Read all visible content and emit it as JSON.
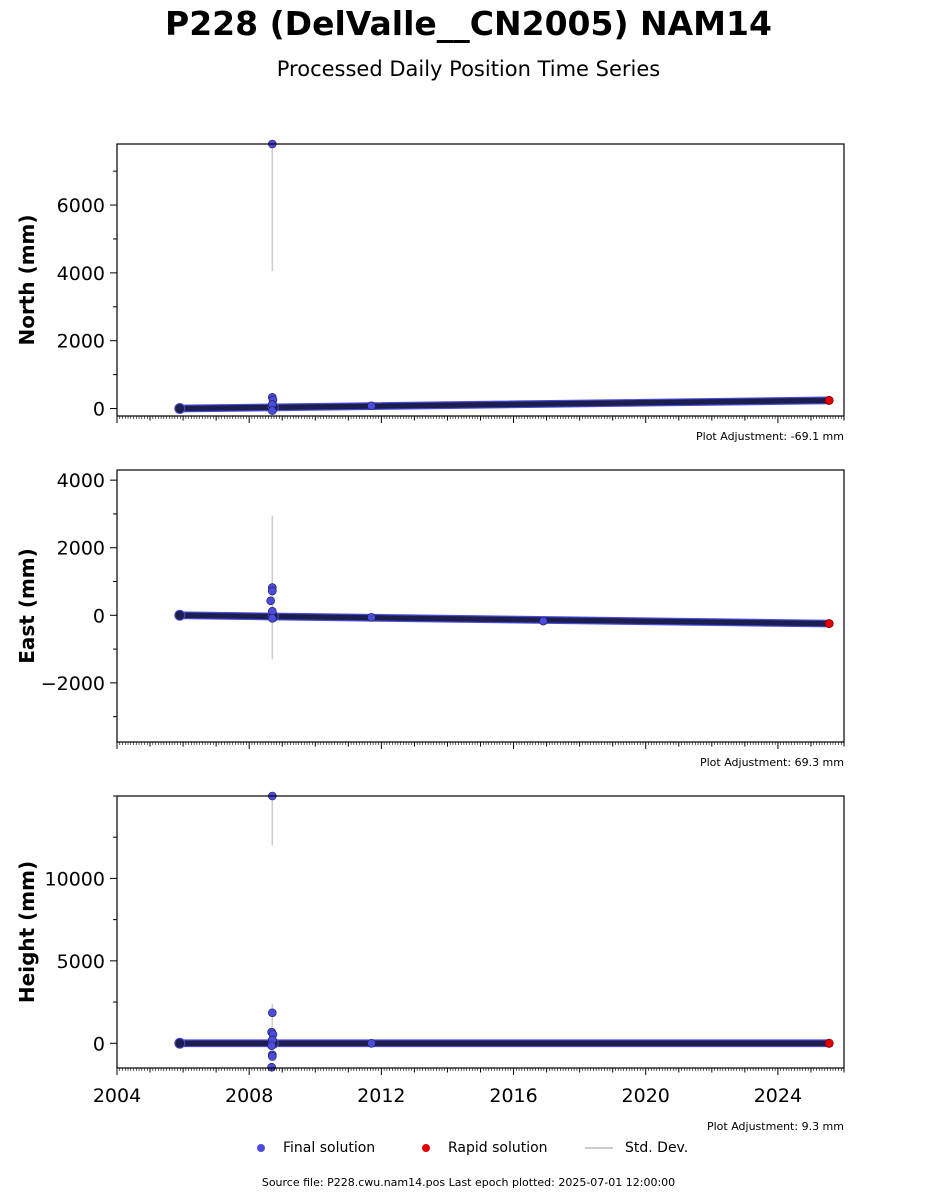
{
  "header": {
    "title": "P228 (DelValle__CN2005) NAM14",
    "subtitle": "Processed Daily Position Time Series"
  },
  "colors": {
    "final": "#4b4bdc",
    "final_edge": "#1a1a4a",
    "rapid": "#e00000",
    "stddev": "#cccccc"
  },
  "legend": {
    "final_label": "Final solution",
    "rapid_label": "Rapid solution",
    "std_label": "Std. Dev."
  },
  "footer": {
    "text": "Source file: P228.cwu.nam14.pos  Last epoch plotted: 2025-07-01 12:00:00"
  },
  "chart_data": [
    {
      "type": "scatter",
      "ylabel": "North (mm)",
      "adjustment": "Plot Adjustment: -69.1 mm",
      "xlim": [
        2004,
        2026
      ],
      "ylim": [
        -220,
        7800
      ],
      "yticks": [
        0,
        2000,
        4000,
        6000
      ],
      "yticklabels": [
        "0",
        "2000",
        "4000",
        "6000"
      ],
      "trend": {
        "x": [
          2005.9,
          2025.5
        ],
        "y": [
          0,
          240
        ]
      },
      "band_halfwidth": 35,
      "gap_x": 2008.7,
      "outliers": [
        {
          "x": 2008.7,
          "y": 7800
        },
        {
          "x": 2008.7,
          "y": 330
        },
        {
          "x": 2008.72,
          "y": 250
        },
        {
          "x": 2008.7,
          "y": 120
        },
        {
          "x": 2008.7,
          "y": -60
        },
        {
          "x": 2011.7,
          "y": 80
        }
      ],
      "errorbars": [
        {
          "x": 2008.7,
          "y0": 4050,
          "y1": 7800
        }
      ],
      "rapid": {
        "x": 2025.55,
        "y": 240
      }
    },
    {
      "type": "scatter",
      "ylabel": "East (mm)",
      "adjustment": "Plot Adjustment: 69.3 mm",
      "xlim": [
        2004,
        2026
      ],
      "ylim": [
        -3750,
        4300
      ],
      "yticks": [
        -2000,
        0,
        2000,
        4000
      ],
      "yticklabels": [
        "−2000",
        "0",
        "2000",
        "4000"
      ],
      "trend": {
        "x": [
          2005.9,
          2025.5
        ],
        "y": [
          0,
          -245
        ]
      },
      "band_halfwidth": 45,
      "gap_x": 2008.7,
      "outliers": [
        {
          "x": 2008.7,
          "y": 820
        },
        {
          "x": 2008.7,
          "y": 720
        },
        {
          "x": 2008.65,
          "y": 430
        },
        {
          "x": 2008.7,
          "y": 120
        },
        {
          "x": 2008.7,
          "y": -90
        },
        {
          "x": 2011.7,
          "y": -60
        },
        {
          "x": 2016.9,
          "y": -170
        }
      ],
      "errorbars": [
        {
          "x": 2008.7,
          "y0": -1300,
          "y1": 2950
        }
      ],
      "rapid": {
        "x": 2025.55,
        "y": -245
      }
    },
    {
      "type": "scatter",
      "ylabel": "Height (mm)",
      "adjustment": "Plot Adjustment: 9.3 mm",
      "xlim": [
        2004,
        2026
      ],
      "ylim": [
        -1500,
        15000
      ],
      "yticks": [
        0,
        5000,
        10000
      ],
      "yticklabels": [
        "0",
        "5000",
        "10000"
      ],
      "xticks": [
        2004,
        2008,
        2012,
        2016,
        2020,
        2024
      ],
      "xticklabels": [
        "2004",
        "2008",
        "2012",
        "2016",
        "2020",
        "2024"
      ],
      "trend": {
        "x": [
          2005.9,
          2025.5
        ],
        "y": [
          0,
          0
        ]
      },
      "band_halfwidth": 200,
      "gap_x": 2008.7,
      "outliers": [
        {
          "x": 2008.7,
          "y": 15000
        },
        {
          "x": 2008.7,
          "y": 1850
        },
        {
          "x": 2008.68,
          "y": 680
        },
        {
          "x": 2008.72,
          "y": 540
        },
        {
          "x": 2008.7,
          "y": 200
        },
        {
          "x": 2008.68,
          "y": -150
        },
        {
          "x": 2008.7,
          "y": -700
        },
        {
          "x": 2008.7,
          "y": -800
        },
        {
          "x": 2008.68,
          "y": -1450
        },
        {
          "x": 2011.7,
          "y": 0
        }
      ],
      "errorbars": [
        {
          "x": 2008.7,
          "y0": 12000,
          "y1": 15000
        },
        {
          "x": 2008.7,
          "y0": 1000,
          "y1": 2400
        }
      ],
      "rapid": {
        "x": 2025.55,
        "y": 0
      }
    }
  ]
}
